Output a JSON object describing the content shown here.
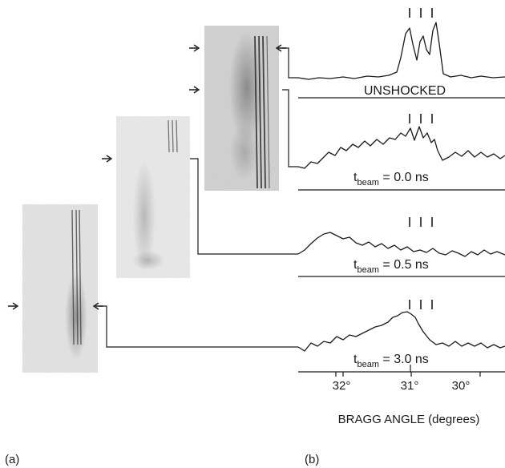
{
  "panels": {
    "a_label": "(a)",
    "b_label": "(b)"
  },
  "axis": {
    "xlabel": "BRAGG ANGLE (degrees)",
    "ticks": [
      "32°",
      "31°",
      "30°"
    ]
  },
  "traces": [
    {
      "label": "UNSHOCKED",
      "label_main": "UNSHOCKED",
      "label_sub": "",
      "label_post": ""
    },
    {
      "label": "t_beam = 0.0 ns",
      "label_main": "t",
      "label_sub": "beam",
      "label_post": " = 0.0 ns"
    },
    {
      "label": "t_beam = 0.5 ns",
      "label_main": "t",
      "label_sub": "beam",
      "label_post": " = 0.5 ns"
    },
    {
      "label": "t_beam = 3.0 ns",
      "label_main": "t",
      "label_sub": "beam",
      "label_post": " = 3.0 ns"
    }
  ],
  "colors": {
    "ink": "#1a1a1a",
    "film_dark": "#2a2a2a"
  }
}
